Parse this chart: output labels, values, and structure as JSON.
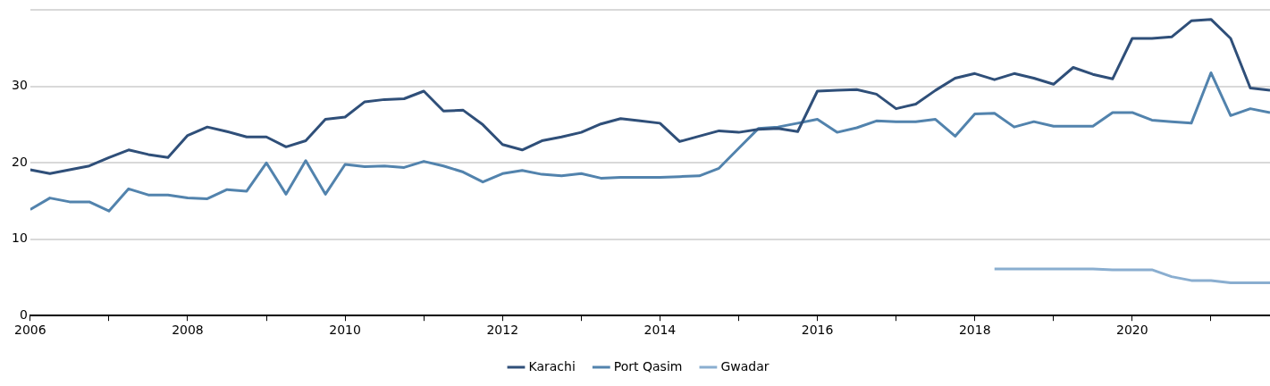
{
  "chart_data": {
    "type": "line",
    "x": [
      2006,
      2006.25,
      2006.5,
      2006.75,
      2007,
      2007.25,
      2007.5,
      2007.75,
      2008,
      2008.25,
      2008.5,
      2008.75,
      2009,
      2009.25,
      2009.5,
      2009.75,
      2010,
      2010.25,
      2010.5,
      2010.75,
      2011,
      2011.25,
      2011.5,
      2011.75,
      2012,
      2012.25,
      2012.5,
      2012.75,
      2013,
      2013.25,
      2013.5,
      2013.75,
      2014,
      2014.25,
      2014.5,
      2014.75,
      2015,
      2015.25,
      2015.5,
      2015.75,
      2016,
      2016.25,
      2016.5,
      2016.75,
      2017,
      2017.25,
      2017.5,
      2017.75,
      2018,
      2018.25,
      2018.5,
      2018.75,
      2019,
      2019.25,
      2019.5,
      2019.75,
      2020,
      2020.25,
      2020.5,
      2020.75,
      2021,
      2021.25,
      2021.5,
      2021.75
    ],
    "series": [
      {
        "name": "Karachi",
        "color": "#2f4f79",
        "values": [
          19.1,
          18.6,
          19.1,
          19.6,
          20.7,
          21.7,
          21.1,
          20.7,
          23.6,
          24.7,
          24.1,
          23.4,
          23.4,
          22.1,
          22.9,
          25.7,
          26.0,
          28.0,
          28.3,
          28.4,
          29.4,
          26.8,
          26.9,
          25.0,
          22.4,
          21.7,
          22.9,
          23.4,
          24.0,
          25.1,
          25.8,
          25.5,
          25.2,
          22.8,
          23.5,
          24.2,
          24.0,
          24.4,
          24.5,
          24.1,
          29.4,
          29.5,
          29.6,
          29.0,
          27.1,
          27.7,
          29.5,
          31.1,
          31.7,
          30.9,
          31.7,
          31.1,
          30.3,
          32.5,
          31.6,
          31.0,
          36.3,
          36.3,
          36.5,
          38.6,
          38.8,
          36.3,
          29.8,
          29.5
        ]
      },
      {
        "name": "Port Qasim",
        "color": "#5283ad",
        "values": [
          13.9,
          15.4,
          14.9,
          14.9,
          13.7,
          16.6,
          15.8,
          15.8,
          15.4,
          15.3,
          16.5,
          16.3,
          20.0,
          15.9,
          20.3,
          15.9,
          19.8,
          19.5,
          19.6,
          19.4,
          20.2,
          19.6,
          18.8,
          17.5,
          18.6,
          19.0,
          18.5,
          18.3,
          18.6,
          18.0,
          18.1,
          18.1,
          18.1,
          18.2,
          18.3,
          19.3,
          21.9,
          24.5,
          24.7,
          25.2,
          25.7,
          24.0,
          24.6,
          25.5,
          25.4,
          25.4,
          25.7,
          23.5,
          26.4,
          26.5,
          24.7,
          25.4,
          24.8,
          24.8,
          24.8,
          26.6,
          26.6,
          25.6,
          25.4,
          25.2,
          31.8,
          26.2,
          27.1,
          26.6
        ]
      },
      {
        "name": "Gwadar",
        "color": "#8aaed0",
        "values": [
          null,
          null,
          null,
          null,
          null,
          null,
          null,
          null,
          null,
          null,
          null,
          null,
          null,
          null,
          null,
          null,
          null,
          null,
          null,
          null,
          null,
          null,
          null,
          null,
          null,
          null,
          null,
          null,
          null,
          null,
          null,
          null,
          null,
          null,
          null,
          null,
          null,
          null,
          null,
          null,
          null,
          null,
          null,
          null,
          null,
          null,
          null,
          null,
          null,
          6.1,
          6.1,
          6.1,
          6.1,
          6.1,
          6.1,
          6.0,
          6.0,
          6.0,
          5.1,
          4.6,
          4.6,
          4.3,
          4.3,
          4.3
        ]
      }
    ],
    "xlim": [
      2006,
      2021.75
    ],
    "xticks": [
      2006,
      {
        "value": 2007,
        "label": null
      },
      2008,
      {
        "value": 2009,
        "label": null
      },
      2010,
      {
        "value": 2011,
        "label": null
      },
      2012,
      {
        "value": 2013,
        "label": null
      },
      2014,
      {
        "value": 2015,
        "label": null
      },
      2016,
      {
        "value": 2017,
        "label": null
      },
      2018,
      {
        "value": 2019,
        "label": null
      },
      2020,
      {
        "value": 2021,
        "label": null
      }
    ],
    "ylim": [
      0,
      40
    ],
    "yticks": [
      0,
      10,
      20,
      30,
      {
        "value": 40,
        "label": null
      }
    ],
    "grid": "y",
    "legend": "bottom",
    "marker": "none",
    "line_style": "solid"
  }
}
